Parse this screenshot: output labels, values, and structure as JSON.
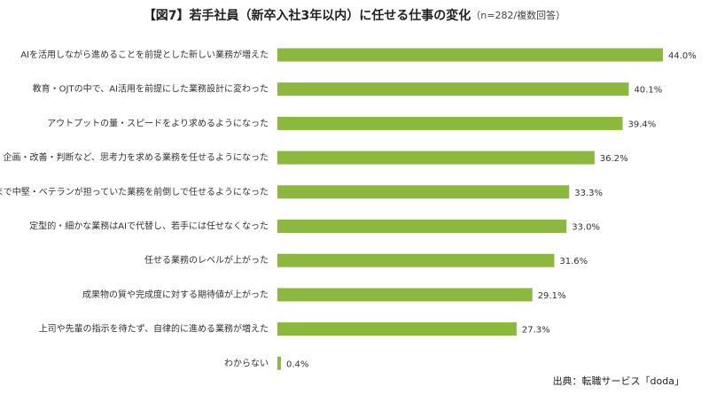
{
  "chart_data": {
    "type": "bar",
    "orientation": "horizontal",
    "title": "【図7】若手社員（新卒入社3年以内）に任せる仕事の変化",
    "subtitle": "（n=282/複数回答）",
    "source": "出典：転職サービス「doda」",
    "color": "#8db83f",
    "categories": [
      "AIを活用しながら進めることを前提とした新しい業務が増えた",
      "教育・OJTの中で、AI活用を前提にした業務設計に変わった",
      "アウトプットの量・スピードをより求めるようになった",
      "企画・改善・判断など、思考力を求める業務を任せるようになった",
      "これまで中堅・ベテランが担っていた業務を前倒しで任せるようになった",
      "定型的・細かな業務はAIで代替し、若手には任せなくなった",
      "任せる業務のレベルが上がった",
      "成果物の質や完成度に対する期待値が上がった",
      "上司や先輩の指示を待たず、自律的に進める業務が増えた",
      "わからない"
    ],
    "values": [
      44.0,
      40.1,
      39.4,
      36.2,
      33.3,
      33.0,
      31.6,
      29.1,
      27.3,
      0.4
    ],
    "value_labels": [
      "44.0%",
      "40.1%",
      "39.4%",
      "36.2%",
      "33.3%",
      "33.0%",
      "31.6%",
      "29.1%",
      "27.3%",
      "0.4%"
    ]
  }
}
